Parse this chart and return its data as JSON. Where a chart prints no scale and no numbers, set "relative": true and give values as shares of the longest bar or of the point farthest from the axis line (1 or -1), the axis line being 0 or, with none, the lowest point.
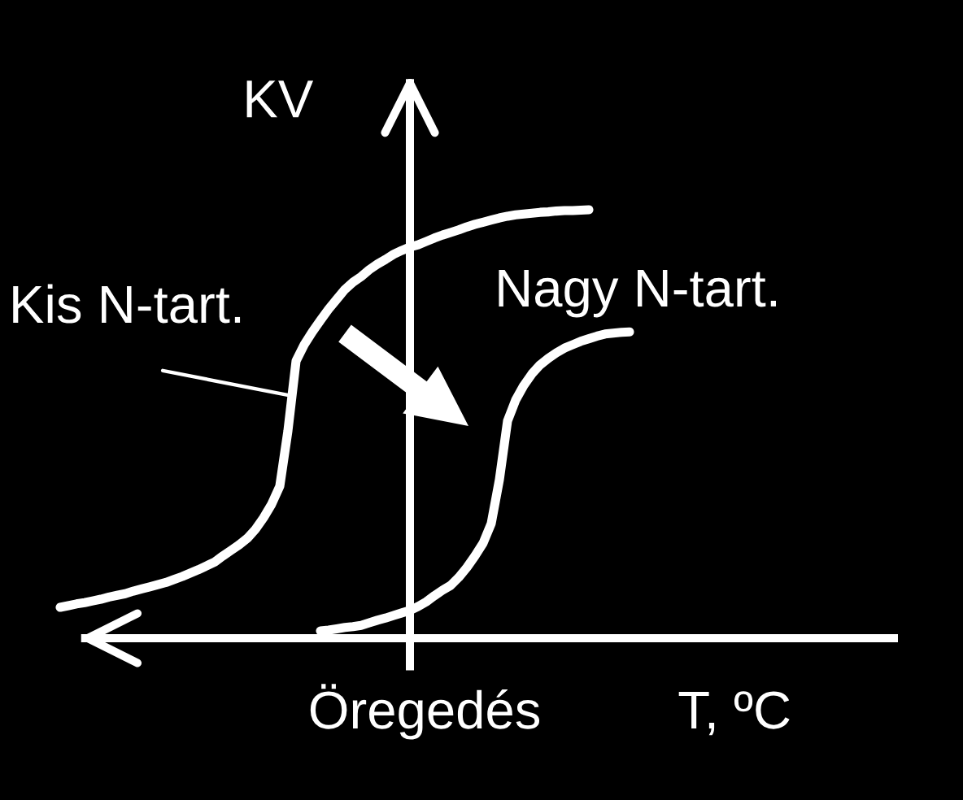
{
  "chart_data": {
    "type": "line",
    "relative": true,
    "xlabel": "T, ºC",
    "ylabel": "KV",
    "annotations": [
      "Öregedés"
    ],
    "categories": [
      null,
      null,
      null,
      null,
      null,
      null,
      null,
      null,
      null,
      null,
      null,
      null,
      null,
      null,
      null,
      null,
      null,
      null,
      null,
      null,
      null,
      null,
      null,
      null,
      null,
      null,
      null,
      null,
      null,
      null,
      null,
      null,
      null,
      null,
      null,
      null,
      null,
      null,
      null,
      null,
      null,
      null,
      null,
      null,
      null,
      null,
      null,
      null,
      null,
      null,
      null,
      null,
      null,
      null,
      null,
      null,
      null,
      null,
      null,
      null,
      null,
      null,
      null,
      null,
      null,
      null,
      null,
      null,
      null,
      null,
      null,
      null,
      null,
      null,
      null,
      null,
      null,
      null,
      null,
      null,
      null,
      null,
      null,
      null,
      null,
      null,
      null,
      null,
      null,
      null,
      null,
      null,
      null,
      null,
      null,
      null,
      null,
      null,
      null,
      null,
      null,
      null,
      null,
      null
    ],
    "series": [
      {
        "name": "Kis N-tart.",
        "color": "#ffffff",
        "values": [
          0.072,
          0.076,
          0.08,
          0.083,
          0.087,
          0.091,
          0.096,
          0.1,
          0.104,
          0.11,
          0.115,
          0.12,
          0.125,
          0.13,
          0.137,
          0.144,
          0.152,
          0.16,
          0.169,
          0.178,
          0.192,
          0.205,
          0.218,
          0.233,
          0.254,
          0.281,
          0.313,
          0.355,
          0.484,
          0.647,
          0.685,
          0.715,
          0.742,
          0.768,
          0.791,
          0.814,
          0.831,
          0.844,
          0.86,
          0.873,
          0.884,
          0.896,
          0.905,
          0.913,
          0.918,
          0.926,
          0.934,
          0.941,
          0.947,
          0.953,
          0.96,
          0.966,
          0.971,
          0.976,
          0.981,
          0.985,
          0.988,
          0.99,
          0.992,
          0.994,
          0.995,
          0.997,
          0.998,
          0.998,
          0.999,
          1.0,
          null,
          null,
          null,
          null,
          null,
          null,
          null,
          null,
          null,
          null,
          null,
          null,
          null,
          null,
          null,
          null,
          null,
          null,
          null,
          null,
          null,
          null,
          null,
          null,
          null,
          null,
          null,
          null,
          null,
          null,
          null,
          null,
          null,
          null,
          null,
          null,
          null,
          null
        ]
      },
      {
        "name": "Nagy N-tart.",
        "color": "#ffffff",
        "values": [
          null,
          null,
          null,
          null,
          null,
          null,
          null,
          null,
          null,
          null,
          null,
          null,
          null,
          null,
          null,
          null,
          null,
          null,
          null,
          null,
          null,
          null,
          null,
          null,
          null,
          null,
          null,
          null,
          null,
          null,
          null,
          null,
          0.017,
          0.019,
          0.022,
          0.025,
          0.027,
          0.03,
          0.036,
          0.042,
          0.047,
          0.053,
          0.059,
          0.065,
          0.074,
          0.085,
          0.099,
          0.112,
          0.123,
          0.142,
          0.165,
          0.192,
          0.222,
          0.268,
          0.37,
          0.507,
          0.556,
          0.59,
          0.617,
          0.638,
          0.653,
          0.666,
          0.677,
          0.685,
          0.693,
          0.699,
          0.705,
          0.71,
          0.712,
          0.714,
          0.715,
          null,
          null,
          null,
          null,
          null,
          null,
          null,
          null,
          null,
          null,
          null,
          null,
          null,
          null,
          null,
          null,
          null,
          null,
          null,
          null,
          null,
          null,
          null,
          null,
          null,
          null,
          null,
          null,
          null,
          null,
          null,
          null,
          null
        ]
      }
    ]
  }
}
